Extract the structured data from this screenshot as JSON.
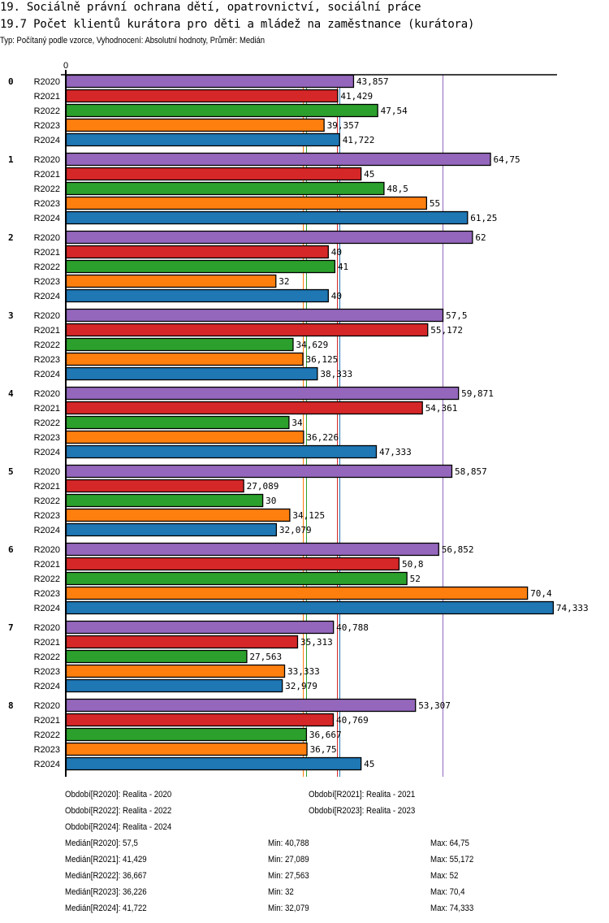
{
  "header": {
    "title": "19. Sociálně právní ochrana dětí, opatrovnictví, sociální práce",
    "subtitle": "19.7 Počet klientů kurátora pro děti a mládež na zaměstnance (kurátora)",
    "info": "Typ: Počítaný podle vzorce, Vyhodnocení: Absolutní hodnoty, Průměr: Medián"
  },
  "chart_data": {
    "type": "bar",
    "orientation": "horizontal",
    "title": "19.7 Počet klientů kurátora pro děti a mládež na zaměstnance (kurátora)",
    "xlabel": "",
    "ylabel": "",
    "x_tick_labels": [
      "0"
    ],
    "xlim": [
      0,
      75
    ],
    "grid": false,
    "categories": [
      "0",
      "1",
      "2",
      "3",
      "4",
      "5",
      "6",
      "7",
      "8"
    ],
    "series": [
      {
        "name": "R2020",
        "color": "#9467bd",
        "values": [
          43.857,
          64.75,
          62,
          57.5,
          59.871,
          58.857,
          56.852,
          40.788,
          53.307
        ],
        "labels": [
          "43,857",
          "64,75",
          "62",
          "57,5",
          "59,871",
          "58,857",
          "56,852",
          "40,788",
          "53,307"
        ]
      },
      {
        "name": "R2021",
        "color": "#d62728",
        "values": [
          41.429,
          45,
          40,
          55.172,
          54.361,
          27.089,
          50.8,
          35.313,
          40.769
        ],
        "labels": [
          "41,429",
          "45",
          "40",
          "55,172",
          "54,361",
          "27,089",
          "50,8",
          "35,313",
          "40,769"
        ]
      },
      {
        "name": "R2022",
        "color": "#2ca02c",
        "values": [
          47.54,
          48.5,
          41,
          34.629,
          34,
          30,
          52,
          27.563,
          36.667
        ],
        "labels": [
          "47,54",
          "48,5",
          "41",
          "34,629",
          "34",
          "30",
          "52",
          "27,563",
          "36,667"
        ]
      },
      {
        "name": "R2023",
        "color": "#ff7f0e",
        "values": [
          39.357,
          55,
          32,
          36.125,
          36.226,
          34.125,
          70.4,
          33.333,
          36.75
        ],
        "labels": [
          "39,357",
          "55",
          "32",
          "36,125",
          "36,226",
          "34,125",
          "70,4",
          "33,333",
          "36,75"
        ]
      },
      {
        "name": "R2024",
        "color": "#1f77b4",
        "values": [
          41.722,
          61.25,
          40,
          38.333,
          47.333,
          32.079,
          74.333,
          32.979,
          45
        ],
        "labels": [
          "41,722",
          "61,25",
          "40",
          "38,333",
          "47,333",
          "32,079",
          "74,333",
          "32,979",
          "45"
        ]
      }
    ],
    "median_lines": [
      {
        "series": "R2020",
        "value": 57.5
      },
      {
        "series": "R2021",
        "value": 41.429
      },
      {
        "series": "R2022",
        "value": 36.667
      },
      {
        "series": "R2023",
        "value": 36.226
      },
      {
        "series": "R2024",
        "value": 41.722
      }
    ]
  },
  "legend": {
    "periods": [
      "Období[R2020]: Realita - 2020",
      "Období[R2021]: Realita - 2021",
      "Období[R2022]: Realita - 2022",
      "Období[R2023]: Realita - 2023",
      "Období[R2024]: Realita - 2024"
    ],
    "stats": [
      {
        "median": "Medián[R2020]: 57,5",
        "min": "Min: 40,788",
        "max": "Max: 64,75"
      },
      {
        "median": "Medián[R2021]: 41,429",
        "min": "Min: 27,089",
        "max": "Max: 55,172"
      },
      {
        "median": "Medián[R2022]: 36,667",
        "min": "Min: 27,563",
        "max": "Max: 52"
      },
      {
        "median": "Medián[R2023]: 36,226",
        "min": "Min: 32",
        "max": "Max: 70,4"
      },
      {
        "median": "Medián[R2024]: 41,722",
        "min": "Min: 32,079",
        "max": "Max: 74,333"
      }
    ]
  }
}
